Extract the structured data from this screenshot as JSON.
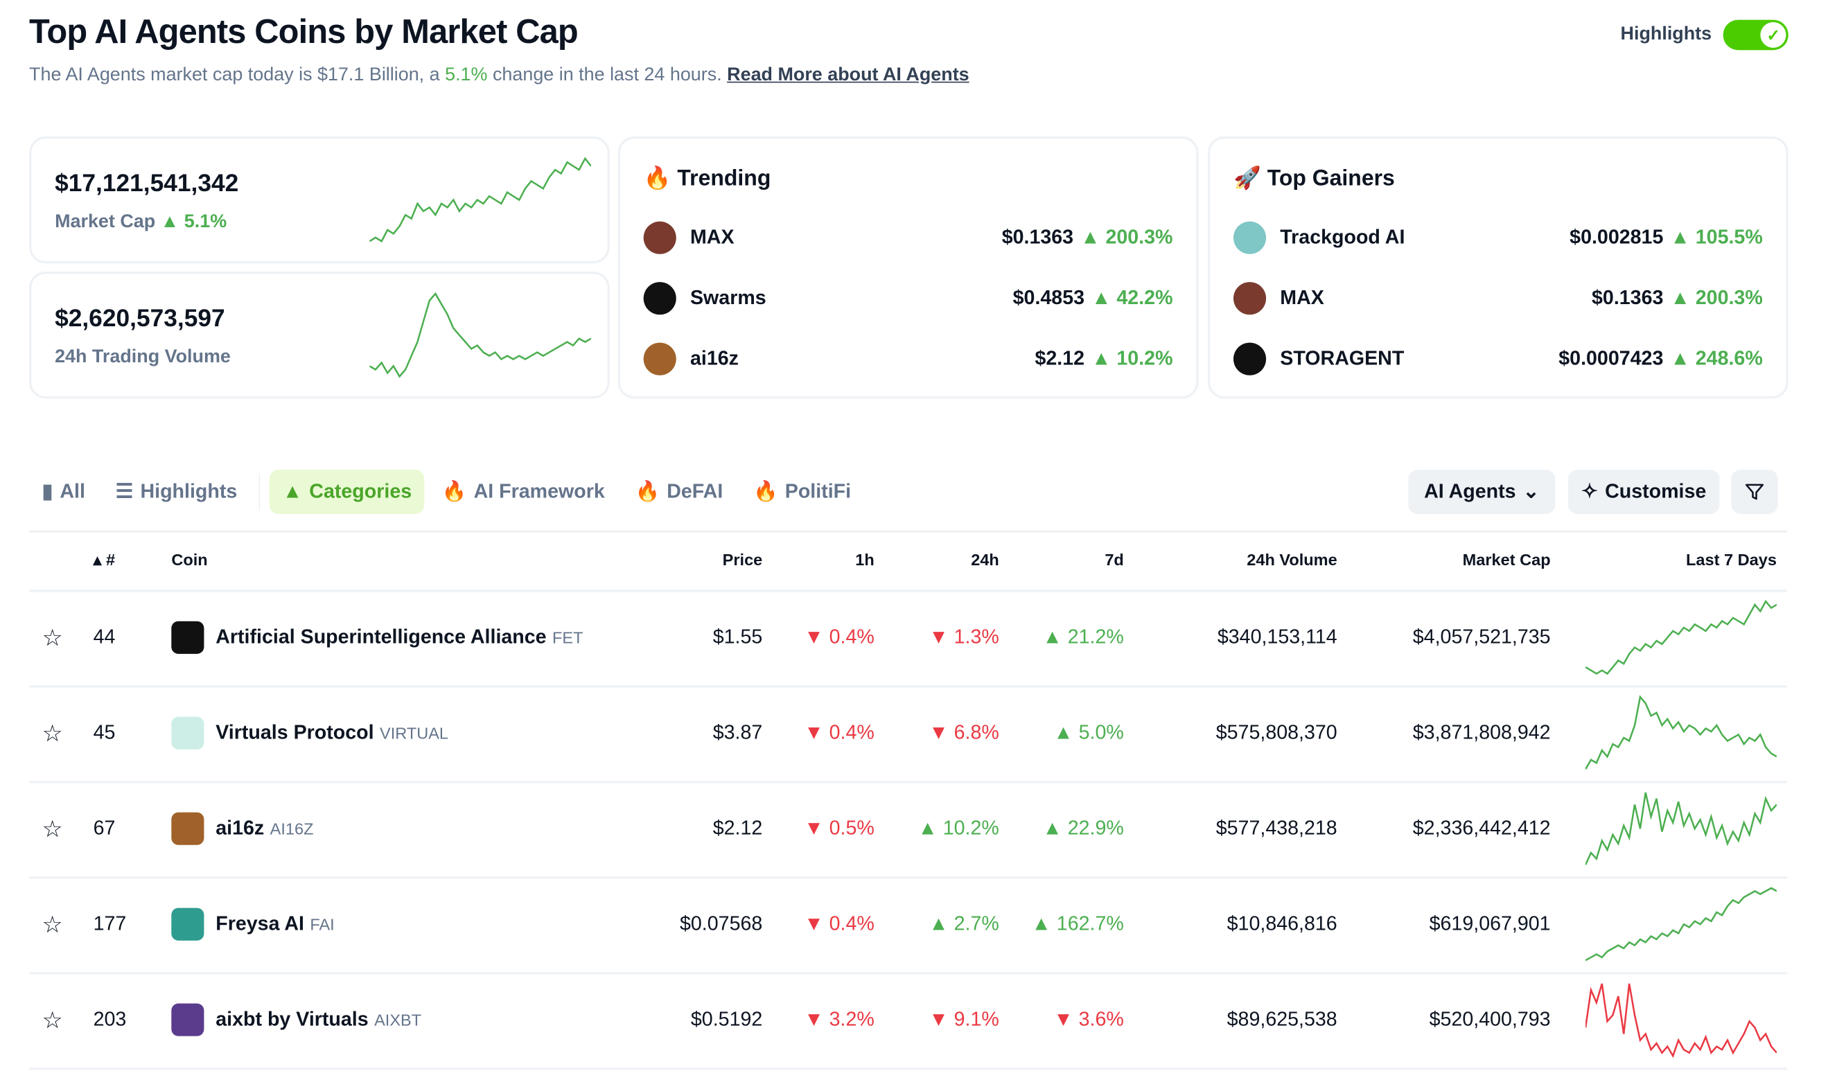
{
  "header": {
    "title": "Top AI Agents Coins by Market Cap",
    "subtitle_pre": "The AI Agents market cap today is $17.1 Billion, a",
    "subtitle_pct": "5.1%",
    "subtitle_post": "change in the last 24 hours.",
    "read_more": "Read More about AI Agents",
    "highlights_label": "Highlights",
    "highlights_on": true
  },
  "stats": [
    {
      "value": "$17,121,541,342",
      "label": "Market Cap",
      "change": "5.1%",
      "spark": [
        2,
        3,
        2,
        5,
        4,
        6,
        9,
        8,
        12,
        10,
        11,
        9,
        12,
        11,
        13,
        10,
        12,
        11,
        13,
        12,
        14,
        13,
        12,
        15,
        14,
        13,
        16,
        18,
        17,
        16,
        19,
        21,
        20,
        23,
        22,
        21,
        24,
        22
      ]
    },
    {
      "value": "$2,620,573,597",
      "label": "24h Trading Volume",
      "spark": [
        5,
        4,
        6,
        3,
        5,
        2,
        4,
        8,
        12,
        18,
        24,
        26,
        23,
        20,
        16,
        14,
        12,
        10,
        11,
        9,
        8,
        9,
        7,
        8,
        7,
        8,
        7,
        8,
        9,
        8,
        9,
        10,
        11,
        12,
        11,
        13,
        12,
        13
      ]
    }
  ],
  "trending": {
    "title": "Trending",
    "items": [
      {
        "name": "MAX",
        "price": "$0.1363",
        "change": "200.3%",
        "color": "#7a3b2e"
      },
      {
        "name": "Swarms",
        "price": "$0.4853",
        "change": "42.2%",
        "color": "#111"
      },
      {
        "name": "ai16z",
        "price": "$2.12",
        "change": "10.2%",
        "color": "#a0622a"
      }
    ]
  },
  "top_gainers": {
    "title": "Top Gainers",
    "items": [
      {
        "name": "Trackgood AI",
        "price": "$0.002815",
        "change": "105.5%",
        "color": "#7fc6c6"
      },
      {
        "name": "MAX",
        "price": "$0.1363",
        "change": "200.3%",
        "color": "#7a3b2e"
      },
      {
        "name": "STORAGENT",
        "price": "$0.0007423",
        "change": "248.6%",
        "color": "#111"
      }
    ]
  },
  "tabs": [
    "All",
    "Highlights",
    "Categories",
    "AI Framework",
    "DeFAI",
    "PolitiFi"
  ],
  "controls": {
    "category": "AI Agents",
    "customise": "Customise"
  },
  "table": {
    "headers": {
      "rank": "#",
      "coin": "Coin",
      "price": "Price",
      "h1": "1h",
      "h24": "24h",
      "d7": "7d",
      "volume": "24h Volume",
      "mcap": "Market Cap",
      "last7": "Last 7 Days"
    },
    "rows": [
      {
        "rank": "44",
        "name": "Artificial Superintelligence Alliance",
        "symbol": "FET",
        "price": "$1.55",
        "h1": "0.4%",
        "h1_up": false,
        "h24": "1.3%",
        "h24_up": false,
        "d7": "21.2%",
        "d7_up": true,
        "volume": "$340,153,114",
        "mcap": "$4,057,521,735",
        "icon_color": "#111",
        "spark": [
          3,
          2,
          1,
          2,
          1,
          3,
          5,
          4,
          7,
          9,
          8,
          10,
          9,
          11,
          10,
          12,
          14,
          13,
          15,
          14,
          16,
          15,
          14,
          16,
          15,
          17,
          16,
          18,
          17,
          16,
          19,
          22,
          20,
          23,
          21,
          22
        ]
      },
      {
        "rank": "45",
        "name": "Virtuals Protocol",
        "symbol": "VIRTUAL",
        "price": "$3.87",
        "h1": "0.4%",
        "h1_up": false,
        "h24": "6.8%",
        "h24_up": false,
        "d7": "5.0%",
        "d7_up": true,
        "volume": "$575,808,370",
        "mcap": "$3,871,808,942",
        "icon_color": "#cdeee6",
        "spark": [
          1,
          4,
          3,
          7,
          5,
          9,
          8,
          11,
          10,
          15,
          24,
          22,
          18,
          19,
          15,
          17,
          14,
          16,
          13,
          15,
          14,
          12,
          14,
          13,
          15,
          12,
          10,
          11,
          12,
          9,
          11,
          10,
          12,
          8,
          6,
          5
        ]
      },
      {
        "rank": "67",
        "name": "ai16z",
        "symbol": "AI16Z",
        "price": "$2.12",
        "h1": "0.5%",
        "h1_up": false,
        "h24": "10.2%",
        "h24_up": true,
        "d7": "22.9%",
        "d7_up": true,
        "volume": "$577,438,218",
        "mcap": "$2,336,442,412",
        "icon_color": "#a0622a",
        "spark": [
          2,
          6,
          4,
          10,
          7,
          12,
          9,
          15,
          11,
          22,
          14,
          26,
          18,
          24,
          13,
          20,
          16,
          23,
          15,
          19,
          14,
          17,
          12,
          18,
          11,
          15,
          9,
          13,
          10,
          16,
          12,
          19,
          16,
          24,
          20,
          22
        ]
      },
      {
        "rank": "177",
        "name": "Freysa AI",
        "symbol": "FAI",
        "price": "$0.07568",
        "h1": "0.4%",
        "h1_up": false,
        "h24": "2.7%",
        "h24_up": true,
        "d7": "162.7%",
        "d7_up": true,
        "volume": "$10,846,816",
        "mcap": "$619,067,901",
        "icon_color": "#2e9c8f",
        "spark": [
          1,
          2,
          3,
          2,
          4,
          5,
          6,
          5,
          7,
          6,
          8,
          7,
          9,
          8,
          10,
          9,
          11,
          10,
          13,
          12,
          14,
          13,
          15,
          14,
          17,
          16,
          19,
          21,
          20,
          22,
          23,
          24,
          23,
          24,
          25,
          24
        ]
      },
      {
        "rank": "203",
        "name": "aixbt by Virtuals",
        "symbol": "AIXBT",
        "price": "$0.5192",
        "h1": "3.2%",
        "h1_up": false,
        "h24": "9.1%",
        "h24_up": false,
        "d7": "3.6%",
        "d7_up": false,
        "volume": "$89,625,538",
        "mcap": "$520,400,793",
        "icon_color": "#5b3c8c",
        "spark": [
          10,
          22,
          18,
          24,
          12,
          14,
          20,
          8,
          24,
          14,
          6,
          8,
          3,
          5,
          2,
          4,
          1,
          6,
          3,
          2,
          5,
          3,
          7,
          2,
          4,
          3,
          6,
          2,
          5,
          8,
          12,
          10,
          6,
          8,
          4,
          2
        ]
      }
    ]
  }
}
